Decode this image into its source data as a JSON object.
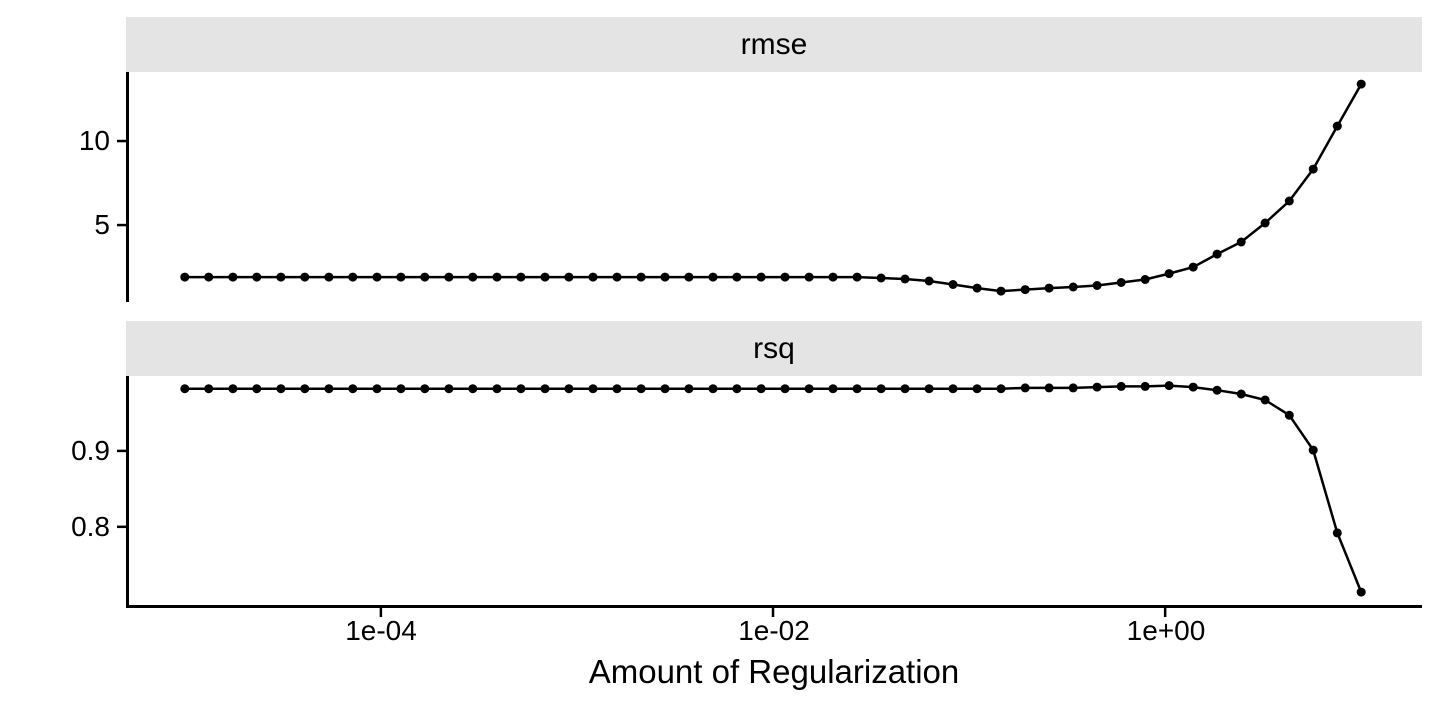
{
  "chart_data": {
    "type": "line",
    "title": "",
    "xlabel": "Amount of Regularization",
    "ylabel": "",
    "x_scale": "log10",
    "grid": "off",
    "legend": "none",
    "line_color": "#000000",
    "point_color": "#000000",
    "strip_background": "#E4E4E4",
    "x_range_log10": [
      -5.3,
      1.31
    ],
    "x_ticks": [
      {
        "label": "1e-04",
        "log10": -4
      },
      {
        "label": "1e-02",
        "log10": -2
      },
      {
        "label": "1e+00",
        "log10": 0
      }
    ],
    "x_log10": [
      -5.0,
      -4.878,
      -4.755,
      -4.633,
      -4.51,
      -4.388,
      -4.265,
      -4.143,
      -4.02,
      -3.898,
      -3.776,
      -3.653,
      -3.531,
      -3.408,
      -3.286,
      -3.163,
      -3.041,
      -2.918,
      -2.796,
      -2.673,
      -2.551,
      -2.429,
      -2.306,
      -2.184,
      -2.061,
      -1.939,
      -1.816,
      -1.694,
      -1.571,
      -1.449,
      -1.327,
      -1.204,
      -1.082,
      -0.959,
      -0.837,
      -0.714,
      -0.592,
      -0.469,
      -0.347,
      -0.224,
      -0.102,
      0.02,
      0.143,
      0.265,
      0.388,
      0.51,
      0.633,
      0.755,
      0.878,
      1.0
    ],
    "penalty": [
      "1.0e-05",
      "1.3e-05",
      "1.8e-05",
      "2.3e-05",
      "3.1e-05",
      "4.1e-05",
      "5.4e-05",
      "7.2e-05",
      "9.5e-05",
      "1.3e-04",
      "1.7e-04",
      "2.2e-04",
      "2.9e-04",
      "3.9e-04",
      "5.2e-04",
      "6.9e-04",
      "9.1e-04",
      "1.2e-03",
      "1.6e-03",
      "2.1e-03",
      "2.8e-03",
      "3.7e-03",
      "4.9e-03",
      "6.6e-03",
      "8.7e-03",
      "1.2e-02",
      "1.5e-02",
      "2.0e-02",
      "2.7e-02",
      "3.6e-02",
      "4.7e-02",
      "6.3e-02",
      "8.3e-02",
      "1.1e-01",
      "1.5e-01",
      "1.9e-01",
      "2.6e-01",
      "3.4e-01",
      "4.5e-01",
      "6.0e-01",
      "7.9e-01",
      "1.0e+00",
      "1.4e+00",
      "1.8e+00",
      "2.4e+00",
      "3.2e+00",
      "4.3e+00",
      "5.7e+00",
      "7.5e+00",
      "1.0e+01"
    ],
    "facets": [
      {
        "label": "rmse",
        "ylim": [
          0.42,
          14.11
        ],
        "y_ticks": [
          {
            "label": "10",
            "value": 10
          },
          {
            "label": "5",
            "value": 5
          }
        ],
        "values": [
          1.9,
          1.9,
          1.9,
          1.9,
          1.9,
          1.9,
          1.9,
          1.9,
          1.9,
          1.9,
          1.9,
          1.9,
          1.9,
          1.9,
          1.9,
          1.9,
          1.9,
          1.9,
          1.9,
          1.9,
          1.9,
          1.9,
          1.9,
          1.9,
          1.9,
          1.9,
          1.9,
          1.9,
          1.9,
          1.85,
          1.79,
          1.67,
          1.46,
          1.25,
          1.07,
          1.16,
          1.25,
          1.31,
          1.4,
          1.58,
          1.76,
          2.11,
          2.5,
          3.27,
          3.99,
          5.12,
          6.43,
          8.33,
          10.89,
          13.39
        ]
      },
      {
        "label": "rsq",
        "ylim": [
          0.697,
          1.0
        ],
        "y_ticks": [
          {
            "label": "0.9",
            "value": 0.9
          },
          {
            "label": "0.8",
            "value": 0.8
          }
        ],
        "values": [
          0.982,
          0.982,
          0.982,
          0.982,
          0.982,
          0.982,
          0.982,
          0.982,
          0.982,
          0.982,
          0.982,
          0.982,
          0.982,
          0.982,
          0.982,
          0.982,
          0.982,
          0.982,
          0.982,
          0.982,
          0.982,
          0.982,
          0.982,
          0.982,
          0.982,
          0.982,
          0.982,
          0.982,
          0.982,
          0.982,
          0.982,
          0.982,
          0.982,
          0.982,
          0.982,
          0.983,
          0.983,
          0.983,
          0.984,
          0.985,
          0.985,
          0.986,
          0.984,
          0.98,
          0.975,
          0.967,
          0.947,
          0.901,
          0.792,
          0.714
        ]
      }
    ]
  }
}
